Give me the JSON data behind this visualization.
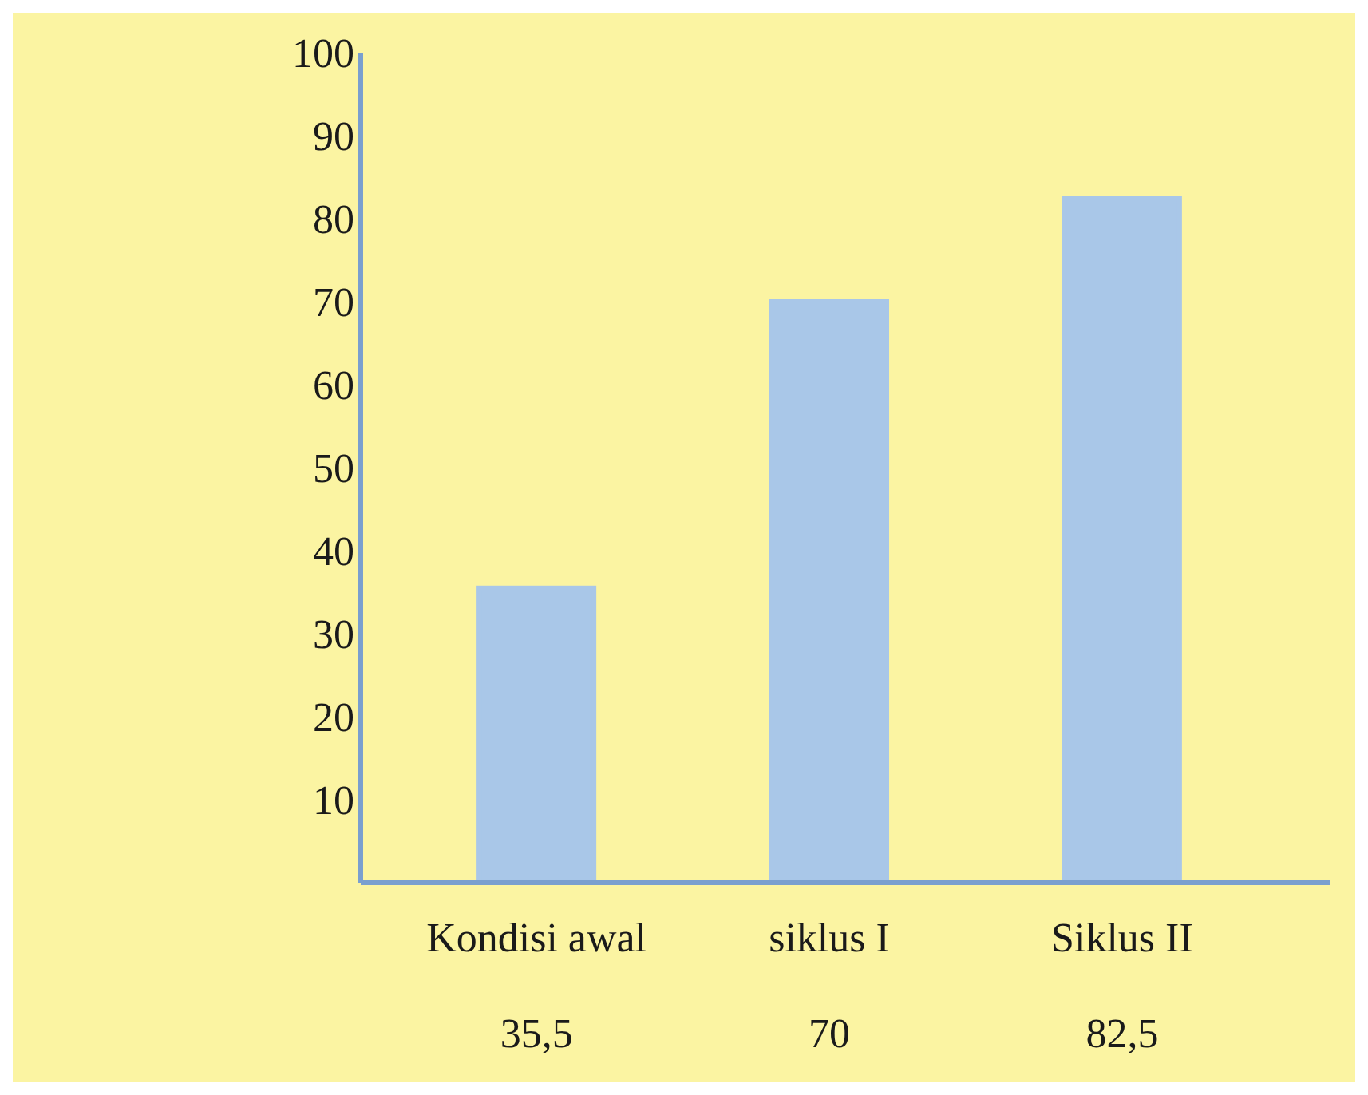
{
  "chart_data": {
    "type": "bar",
    "categories": [
      "Kondisi awal",
      "siklus I",
      "Siklus II"
    ],
    "values": [
      35.5,
      70,
      82.5
    ],
    "value_labels": [
      "35,5",
      "70",
      "82,5"
    ],
    "color": "#a9c7e8",
    "ylim": [
      0,
      100
    ],
    "yticks": [
      10,
      20,
      30,
      40,
      50,
      60,
      70,
      80,
      90,
      100
    ]
  }
}
